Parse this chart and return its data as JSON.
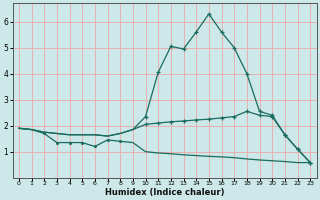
{
  "xlabel": "Humidex (Indice chaleur)",
  "bg_color": "#cce8e8",
  "grid_color": "#e8b0b0",
  "line_color": "#1a6b60",
  "xlim": [
    -0.5,
    23.5
  ],
  "ylim": [
    0,
    6.7
  ],
  "yticks": [
    1,
    2,
    3,
    4,
    5,
    6
  ],
  "xticks": [
    0,
    1,
    2,
    3,
    4,
    5,
    6,
    7,
    8,
    9,
    10,
    11,
    12,
    13,
    14,
    15,
    16,
    17,
    18,
    19,
    20,
    21,
    22,
    23
  ],
  "line1_x": [
    0,
    1,
    2,
    3,
    4,
    5,
    6,
    7,
    8,
    9,
    10,
    11,
    12,
    13,
    14,
    15,
    16,
    17,
    18,
    19,
    20,
    21,
    22,
    23
  ],
  "line1_y": [
    1.9,
    1.85,
    1.7,
    1.35,
    1.35,
    1.35,
    1.2,
    1.45,
    1.4,
    1.35,
    1.0,
    0.95,
    0.92,
    0.88,
    0.85,
    0.82,
    0.8,
    0.77,
    0.72,
    0.68,
    0.65,
    0.62,
    0.58,
    0.58
  ],
  "line2_x": [
    0,
    1,
    2,
    3,
    4,
    5,
    6,
    7,
    8,
    9,
    10,
    11,
    12,
    13,
    14,
    15,
    16,
    17,
    18,
    19,
    20,
    21,
    22,
    23
  ],
  "line2_y": [
    1.9,
    1.85,
    1.75,
    1.7,
    1.65,
    1.65,
    1.65,
    1.6,
    1.7,
    1.85,
    2.05,
    2.1,
    2.15,
    2.18,
    2.22,
    2.25,
    2.3,
    2.35,
    2.55,
    2.4,
    2.35,
    1.65,
    1.1,
    0.58
  ],
  "line3_x": [
    0,
    1,
    2,
    3,
    4,
    5,
    6,
    7,
    8,
    9,
    10,
    11,
    12,
    13,
    14,
    15,
    16,
    17,
    18,
    19,
    20,
    21,
    22,
    23
  ],
  "line3_y": [
    1.9,
    1.85,
    1.75,
    1.7,
    1.65,
    1.65,
    1.65,
    1.6,
    1.7,
    1.85,
    2.35,
    4.05,
    5.05,
    4.95,
    5.6,
    6.3,
    5.6,
    5.0,
    4.0,
    2.55,
    2.4,
    1.65,
    1.1,
    0.58
  ],
  "markers3_x": [
    10,
    11,
    12,
    13,
    14,
    15,
    16,
    17,
    18,
    19,
    20,
    21,
    22,
    23
  ],
  "markers3_y": [
    2.35,
    4.05,
    5.05,
    4.95,
    5.6,
    6.3,
    5.6,
    5.0,
    4.0,
    2.55,
    2.4,
    1.65,
    1.1,
    0.58
  ],
  "markers2_x": [
    10,
    11,
    12,
    13,
    14,
    15,
    16,
    17,
    18,
    19,
    20,
    21,
    22,
    23
  ],
  "markers2_y": [
    2.05,
    2.1,
    2.15,
    2.18,
    2.22,
    2.25,
    2.3,
    2.35,
    2.55,
    2.4,
    2.35,
    1.65,
    1.1,
    0.58
  ],
  "markers1_x": [
    2,
    3,
    4,
    5,
    6,
    7,
    8
  ],
  "markers1_y": [
    1.7,
    1.35,
    1.35,
    1.35,
    1.2,
    1.45,
    1.4
  ]
}
